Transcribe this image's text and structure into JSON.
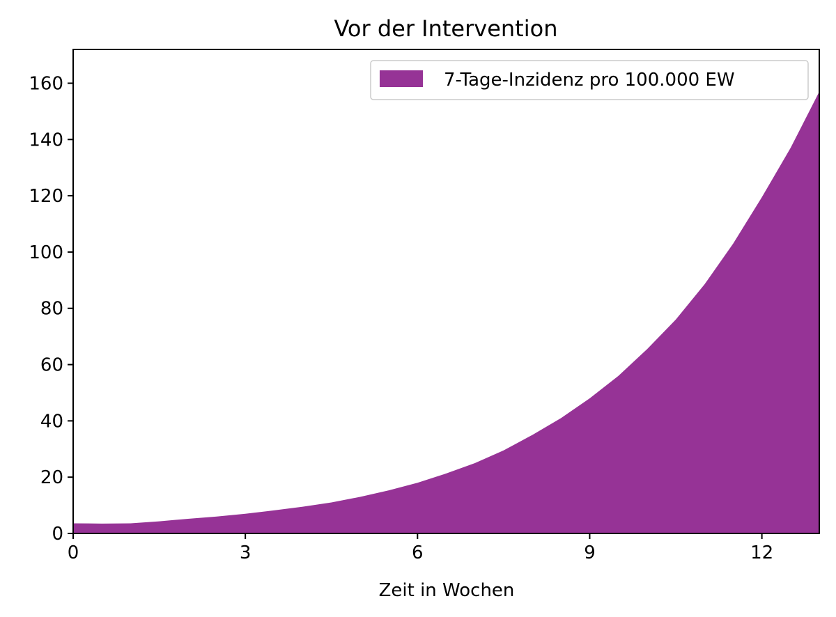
{
  "chart_data": {
    "type": "area",
    "title": "Vor der Intervention",
    "xlabel": "Zeit in Wochen",
    "ylabel": "",
    "xlim": [
      0,
      13
    ],
    "ylim": [
      0,
      172
    ],
    "xticks": [
      0,
      3,
      6,
      9,
      12
    ],
    "yticks": [
      0,
      20,
      40,
      60,
      80,
      100,
      120,
      140,
      160
    ],
    "grid": false,
    "legend_position": "top-right",
    "series": [
      {
        "name": "7-Tage-Inzidenz pro 100.000 EW",
        "color": "#963396",
        "x": [
          0,
          0.5,
          1,
          1.5,
          2,
          2.5,
          3,
          3.5,
          4,
          4.5,
          5,
          5.5,
          6,
          6.5,
          7,
          7.5,
          8,
          8.5,
          9,
          9.5,
          10,
          10.5,
          11,
          11.5,
          12,
          12.5,
          13
        ],
        "y": [
          3.6,
          3.5,
          3.6,
          4.3,
          5.2,
          6.0,
          7.0,
          8.2,
          9.5,
          11.0,
          13.0,
          15.3,
          18.0,
          21.3,
          25.0,
          29.5,
          35.0,
          41.0,
          48.0,
          56.0,
          65.5,
          76.0,
          88.5,
          103.0,
          119.5,
          137.0,
          157.0
        ]
      }
    ]
  }
}
